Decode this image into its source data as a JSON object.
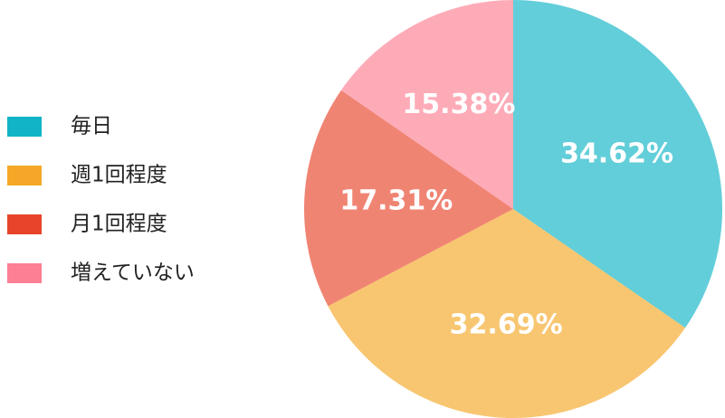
{
  "chart_data": {
    "type": "pie",
    "categories": [
      "毎日",
      "週1回程度",
      "月1回程度",
      "増えていない"
    ],
    "values": [
      34.62,
      32.69,
      17.31,
      15.38
    ],
    "value_labels": [
      "34.62%",
      "32.69%",
      "17.31%",
      "15.38%"
    ],
    "colors": [
      "#10b4c6",
      "#f5a827",
      "#e8442b",
      "#fd7f93"
    ],
    "legend": "left"
  }
}
